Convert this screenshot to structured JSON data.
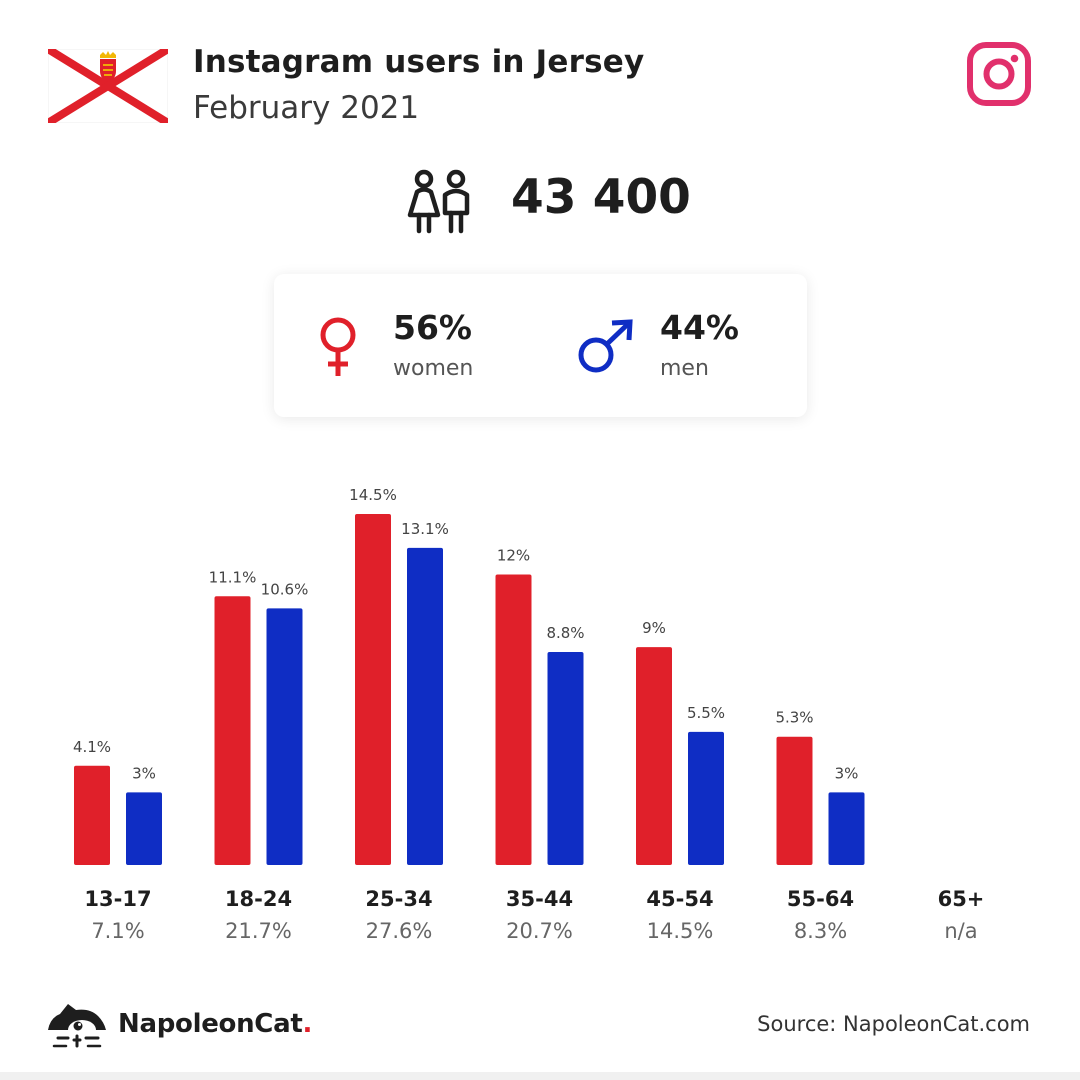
{
  "header": {
    "title": "Instagram users in Jersey",
    "subtitle": "February 2021",
    "flag_icon": "jersey-flag-icon",
    "platform_icon": "instagram-icon"
  },
  "total": {
    "value": "43 400",
    "icon": "people-icon"
  },
  "gender": {
    "women": {
      "pct": "56%",
      "label": "women",
      "icon": "female-symbol-icon",
      "color": "#e0202a"
    },
    "men": {
      "pct": "44%",
      "label": "men",
      "icon": "male-symbol-icon",
      "color": "#0f2dc4"
    }
  },
  "chart_data": {
    "type": "bar",
    "categories": [
      "13-17",
      "18-24",
      "25-34",
      "35-44",
      "45-54",
      "55-64",
      "65+"
    ],
    "category_totals": [
      "7.1%",
      "21.7%",
      "27.6%",
      "20.7%",
      "14.5%",
      "8.3%",
      "n/a"
    ],
    "series": [
      {
        "color": "#e0202a",
        "values": [
          4.1,
          11.1,
          14.5,
          12,
          9,
          5.3,
          null
        ],
        "labels": [
          "4.1%",
          "11.1%",
          "14.5%",
          "12%",
          "9%",
          "5.3%",
          ""
        ]
      },
      {
        "color": "#0f2dc4",
        "values": [
          3,
          10.6,
          13.1,
          8.8,
          5.5,
          3,
          null
        ],
        "labels": [
          "3%",
          "10.6%",
          "13.1%",
          "8.8%",
          "5.5%",
          "3%",
          ""
        ]
      }
    ],
    "ylim": [
      0,
      14.5
    ],
    "grid": false,
    "legend": "none"
  },
  "footer": {
    "brand_name": "NapoleonCat",
    "brand_dot": ".",
    "brand_icon": "napoleoncat-logo-icon",
    "source": "Source: NapoleonCat.com"
  }
}
